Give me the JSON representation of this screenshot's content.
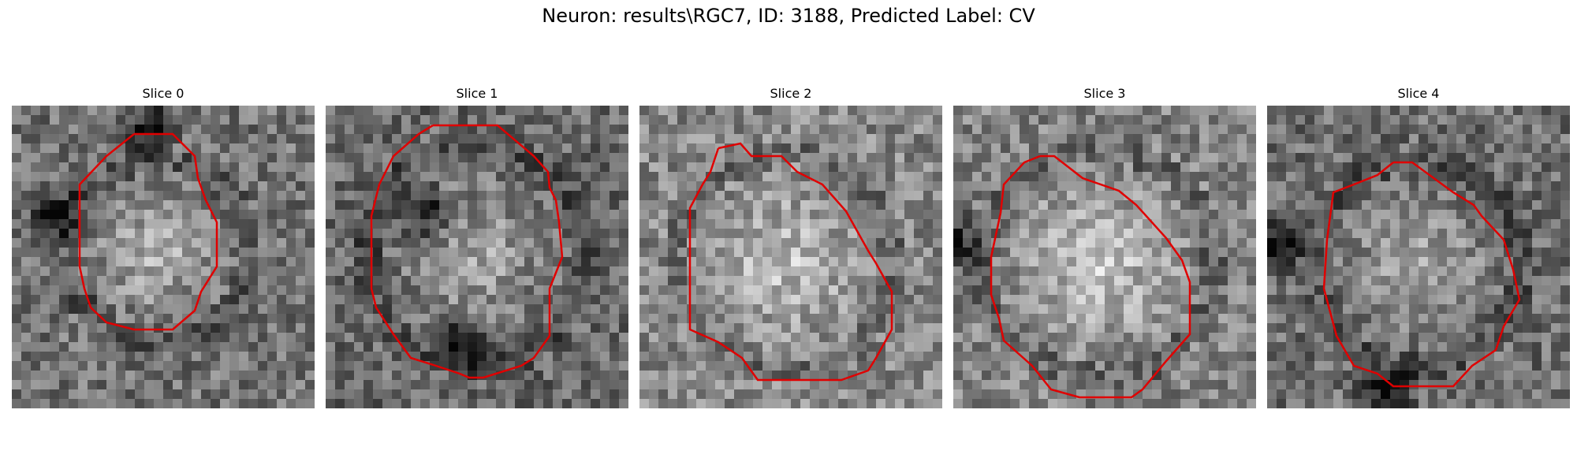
{
  "figure": {
    "title": "Neuron: results\\RGC7, ID: 3188, Predicted Label: CV"
  },
  "panels": [
    {
      "title": "Slice 0"
    },
    {
      "title": "Slice 1"
    },
    {
      "title": "Slice 2"
    },
    {
      "title": "Slice 3"
    },
    {
      "title": "Slice 4"
    }
  ],
  "style": {
    "contour_color": "#e00000",
    "colormap": "grayscale"
  }
}
